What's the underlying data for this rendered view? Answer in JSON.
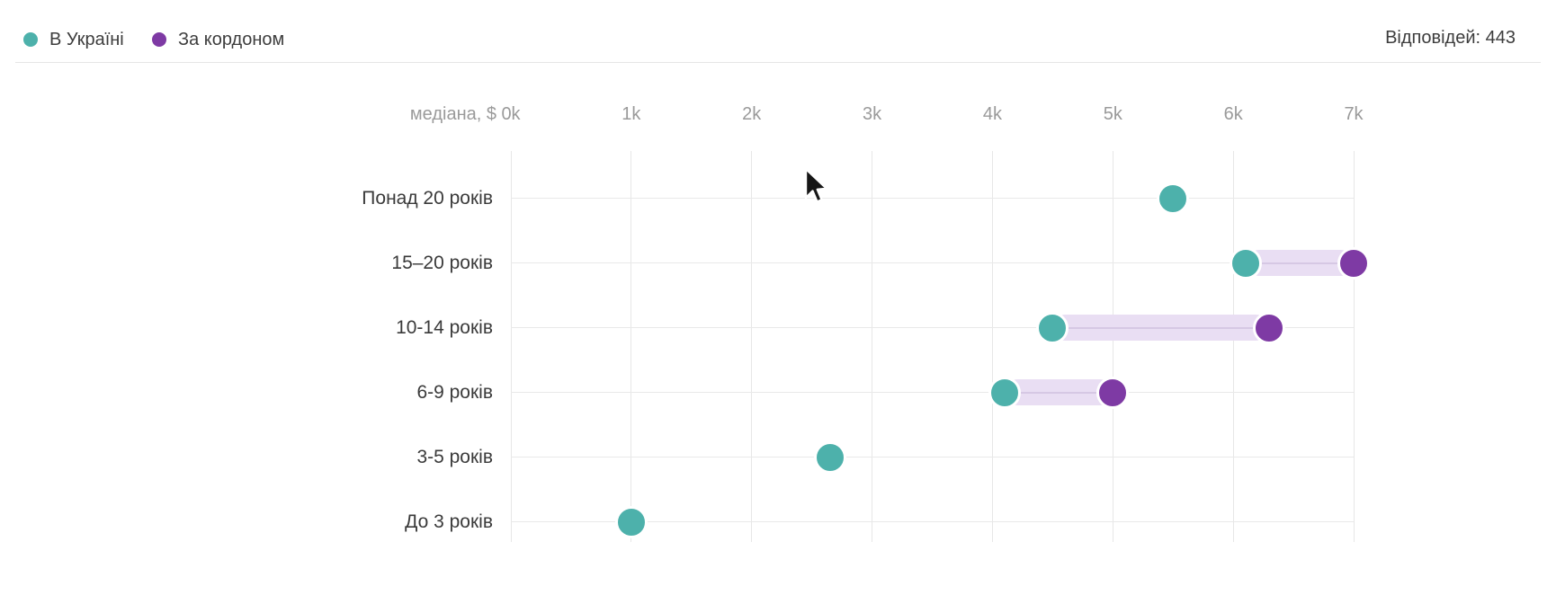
{
  "header": {
    "legend": [
      {
        "key": "ukraine",
        "label": "В Україні",
        "color": "#4db1ab"
      },
      {
        "key": "abroad",
        "label": "За кордоном",
        "color": "#7e3aa4"
      }
    ],
    "responses_label": "Відповідей: 443"
  },
  "chart_data": {
    "type": "dumbbell",
    "title": "",
    "x_axis_title": "медіана, $",
    "unit": "thousand USD",
    "x_ticks": [
      "0k",
      "1k",
      "2k",
      "3k",
      "4k",
      "5k",
      "6k",
      "7k"
    ],
    "x_tick_values": [
      0,
      1,
      2,
      3,
      4,
      5,
      6,
      7
    ],
    "xlim": [
      0,
      7
    ],
    "grid": true,
    "legend_position": "top-left",
    "categories": [
      "Понад 20 років",
      "15–20 років",
      "10-14 років",
      "6-9 років",
      "3-5 років",
      "До 3 років"
    ],
    "series": [
      {
        "name": "В Україні",
        "color": "#4db1ab",
        "values": [
          5.5,
          6.1,
          4.5,
          4.1,
          2.65,
          1.0
        ]
      },
      {
        "name": "За кордоном",
        "color": "#7e3aa4",
        "values": [
          null,
          7.0,
          6.3,
          5.0,
          null,
          null
        ]
      }
    ],
    "connector_color": "#e9def3",
    "connector_line_color": "#d6c8e4"
  }
}
